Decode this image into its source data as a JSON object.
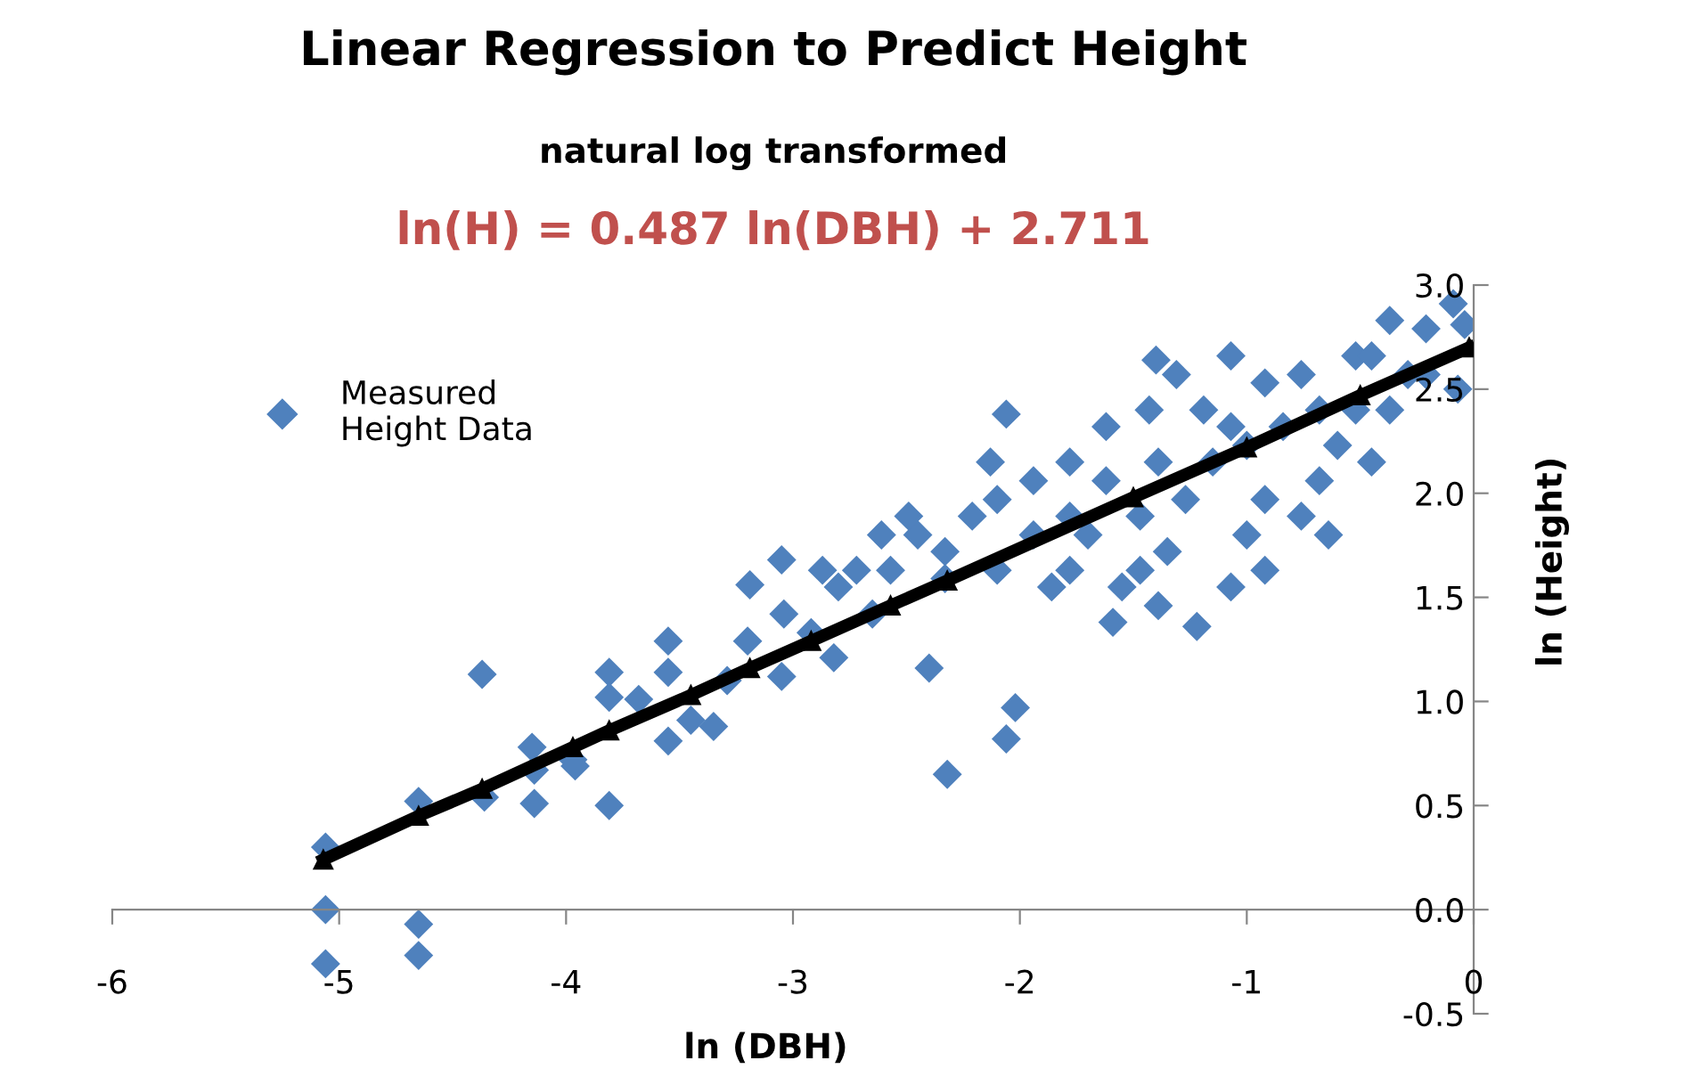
{
  "chart_data": {
    "type": "scatter",
    "title": "Linear Regression to Predict Height",
    "subtitle": "natural log transformed",
    "annotations": [
      "ln(H) = 0.487 ln(DBH) + 2.711"
    ],
    "xlabel": "ln (DBH)",
    "ylabel": "ln (Height)",
    "xlim": [
      -6,
      0
    ],
    "xticks": [
      -6,
      -5,
      -4,
      -3,
      -2,
      -1,
      0
    ],
    "ylim": [
      -0.5,
      3.0
    ],
    "yticks": [
      {
        "value": -0.5,
        "label": "-0.5"
      },
      {
        "value": 0,
        "label": "0.0"
      },
      {
        "value": 0.5,
        "label": "0.5"
      },
      {
        "value": 1.0,
        "label": "1.0"
      },
      {
        "value": 1.5,
        "label": "1.5"
      },
      {
        "value": 2.0,
        "label": "2.0"
      },
      {
        "value": 2.5,
        "label": "2.5"
      },
      {
        "value": 3.0,
        "label": "3.0"
      }
    ],
    "grid": false,
    "legend": "top left",
    "series": [
      {
        "name": "Measured\nHeight Data",
        "marker": "diamond",
        "color": "#4f81bd",
        "x": [
          -5.06,
          -5.06,
          -5.06,
          -4.65,
          -4.65,
          -4.65,
          -4.37,
          -4.36,
          -4.15,
          -4.14,
          -4.14,
          -3.97,
          -3.96,
          -3.81,
          -3.81,
          -3.81,
          -3.68,
          -3.55,
          -3.55,
          -3.55,
          -3.45,
          -3.35,
          -3.29,
          -3.2,
          -3.19,
          -3.05,
          -3.04,
          -3.05,
          -2.92,
          -2.82,
          -2.87,
          -2.8,
          -2.65,
          -2.57,
          -2.4,
          -2.32,
          -2.06,
          -2.02,
          -2.45,
          -2.33,
          -2.13,
          -2.06,
          -1.94,
          -1.86,
          -1.7,
          -1.62,
          -1.47,
          -1.43,
          -1.4,
          -1.31,
          -1.22,
          -1.07,
          -1.0,
          -1.07,
          -0.76,
          -0.64,
          -0.6,
          -0.52,
          -0.37,
          -0.21,
          -0.09,
          -0.07,
          -0.04,
          -0.37,
          -0.45,
          -0.76,
          -0.92,
          -1.39,
          -1.55,
          -1.78,
          -1.15,
          -1.62,
          -0.84,
          -0.68,
          -1.78,
          -1.94,
          -2.21,
          -2.1,
          -2.61,
          -2.72,
          -2.49,
          -1.27,
          -1.39,
          -1.07,
          -0.52,
          -1.0,
          -1.47,
          -1.78,
          -0.92,
          -0.68,
          -0.29,
          -0.92,
          -1.19,
          -2.1,
          -2.33,
          -1.59,
          -1.35,
          -0.45,
          -0.21
        ],
        "values": [
          0.3,
          0.0,
          -0.26,
          0.52,
          -0.07,
          -0.22,
          1.13,
          0.54,
          0.78,
          0.51,
          0.67,
          0.72,
          0.69,
          1.14,
          1.02,
          0.5,
          1.01,
          1.29,
          1.14,
          0.81,
          0.91,
          0.88,
          1.1,
          1.29,
          1.56,
          1.68,
          1.42,
          1.12,
          1.33,
          1.21,
          1.63,
          1.55,
          1.42,
          1.63,
          1.16,
          0.65,
          0.82,
          0.97,
          1.8,
          1.72,
          2.15,
          2.38,
          1.8,
          1.55,
          1.8,
          2.06,
          1.63,
          2.4,
          2.64,
          2.57,
          1.36,
          1.55,
          1.8,
          2.66,
          2.57,
          1.8,
          2.23,
          2.66,
          2.83,
          2.79,
          2.91,
          2.5,
          2.81,
          2.4,
          2.15,
          1.89,
          1.97,
          1.46,
          1.55,
          1.63,
          2.15,
          2.32,
          2.32,
          2.4,
          2.15,
          2.06,
          1.89,
          1.97,
          1.8,
          1.63,
          1.89,
          1.97,
          2.15,
          2.32,
          2.4,
          2.23,
          1.89,
          1.89,
          1.63,
          2.06,
          2.57,
          2.53,
          2.4,
          1.63,
          1.59,
          1.38,
          1.72,
          2.66,
          2.57
        ]
      },
      {
        "type": "line",
        "marker": "triangle",
        "line_style": "solid",
        "color": "#000000",
        "x": [
          -5.07,
          -4.65,
          -4.37,
          -3.97,
          -3.81,
          -3.45,
          -3.19,
          -2.92,
          -2.57,
          -2.32,
          -1.5,
          -1.0,
          -0.5,
          -0.02
        ],
        "values": [
          0.24,
          0.45,
          0.58,
          0.78,
          0.86,
          1.03,
          1.16,
          1.29,
          1.46,
          1.58,
          1.98,
          2.22,
          2.47,
          2.7
        ]
      }
    ]
  }
}
